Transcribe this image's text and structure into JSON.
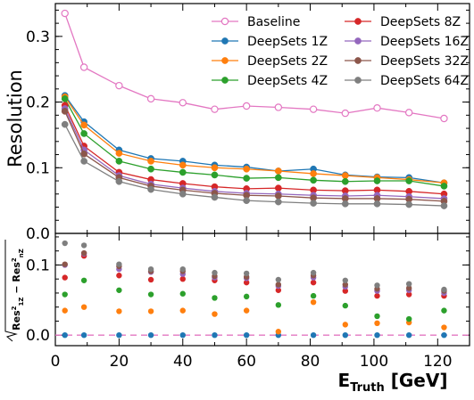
{
  "chart_data": [
    {
      "type": "line",
      "ylabel": "Resolution",
      "ylim": [
        0,
        0.35
      ],
      "xlim": [
        0,
        130
      ],
      "yticks": [
        0,
        0.1,
        0.2,
        0.3
      ],
      "ytick_labels": [
        "0.0",
        "0.1",
        "0.2",
        "0.3"
      ],
      "legend_position": "top-right",
      "x": [
        3,
        9,
        20,
        30,
        40,
        50,
        60,
        70,
        81,
        91,
        101,
        111,
        122
      ],
      "series": [
        {
          "name": "Baseline",
          "color": "#e377c2",
          "hollow": true,
          "values": [
            0.335,
            0.253,
            0.225,
            0.205,
            0.199,
            0.189,
            0.194,
            0.192,
            0.189,
            0.183,
            0.191,
            0.184,
            0.175
          ]
        },
        {
          "name": "DeepSets 1Z",
          "color": "#1f77b4",
          "values": [
            0.21,
            0.17,
            0.127,
            0.114,
            0.11,
            0.104,
            0.101,
            0.095,
            0.098,
            0.089,
            0.086,
            0.085,
            0.077
          ]
        },
        {
          "name": "DeepSets 2Z",
          "color": "#ff7f0e",
          "values": [
            0.208,
            0.165,
            0.122,
            0.11,
            0.104,
            0.1,
            0.098,
            0.095,
            0.091,
            0.088,
            0.085,
            0.082,
            0.077
          ]
        },
        {
          "name": "DeepSets 4Z",
          "color": "#2ca02c",
          "values": [
            0.205,
            0.152,
            0.11,
            0.098,
            0.093,
            0.089,
            0.084,
            0.085,
            0.081,
            0.079,
            0.08,
            0.08,
            0.072
          ]
        },
        {
          "name": "DeepSets 8Z",
          "color": "#d62728",
          "values": [
            0.195,
            0.133,
            0.093,
            0.082,
            0.076,
            0.071,
            0.068,
            0.069,
            0.066,
            0.065,
            0.066,
            0.064,
            0.06
          ]
        },
        {
          "name": "DeepSets 16Z",
          "color": "#9467bd",
          "values": [
            0.19,
            0.127,
            0.088,
            0.075,
            0.069,
            0.064,
            0.061,
            0.06,
            0.058,
            0.057,
            0.058,
            0.056,
            0.053
          ]
        },
        {
          "name": "DeepSets 32Z",
          "color": "#8c564b",
          "values": [
            0.186,
            0.121,
            0.085,
            0.072,
            0.066,
            0.061,
            0.058,
            0.057,
            0.054,
            0.053,
            0.053,
            0.052,
            0.049
          ]
        },
        {
          "name": "DeepSets 64Z",
          "color": "#7f7f7f",
          "values": [
            0.166,
            0.11,
            0.079,
            0.067,
            0.06,
            0.055,
            0.05,
            0.048,
            0.046,
            0.045,
            0.045,
            0.044,
            0.042
          ]
        }
      ]
    },
    {
      "type": "scatter",
      "ylabel": "√Res²₁Z − Res²ₙZ",
      "xlabel": "E",
      "xlabel_sub": "Truth",
      "xlabel_unit": "[GeV]",
      "ylim": [
        -0.015,
        0.145
      ],
      "xlim": [
        0,
        130
      ],
      "yticks": [
        0,
        0.1
      ],
      "ytick_labels": [
        "0.0",
        "0.1"
      ],
      "xticks": [
        0,
        20,
        40,
        60,
        80,
        100,
        120
      ],
      "xtick_labels": [
        "0",
        "20",
        "40",
        "60",
        "80",
        "100",
        "120"
      ],
      "zero_line_color": "#e377c2",
      "x": [
        3,
        9,
        20,
        30,
        40,
        50,
        60,
        70,
        81,
        91,
        101,
        111,
        122
      ],
      "series": [
        {
          "color": "#1f77b4",
          "values": [
            0,
            0,
            0,
            0,
            0,
            0,
            0,
            0,
            0,
            0,
            0,
            0,
            0
          ]
        },
        {
          "color": "#ff7f0e",
          "values": [
            0.035,
            0.04,
            0.034,
            0.034,
            0.035,
            0.03,
            0.035,
            0.005,
            0.047,
            0.015,
            0.017,
            0.018,
            0.011
          ]
        },
        {
          "color": "#2ca02c",
          "values": [
            0.058,
            0.078,
            0.064,
            0.058,
            0.059,
            0.053,
            0.055,
            0.043,
            0.056,
            0.042,
            0.027,
            0.023,
            0.035
          ]
        },
        {
          "color": "#d62728",
          "values": [
            0.082,
            0.113,
            0.085,
            0.079,
            0.08,
            0.078,
            0.075,
            0.064,
            0.075,
            0.063,
            0.056,
            0.058,
            0.056
          ]
        },
        {
          "color": "#9467bd",
          "values": [
            0.1,
            0.116,
            0.094,
            0.09,
            0.087,
            0.082,
            0.081,
            0.07,
            0.082,
            0.069,
            0.063,
            0.064,
            0.06
          ]
        },
        {
          "color": "#8c564b",
          "values": [
            0.101,
            0.117,
            0.098,
            0.091,
            0.091,
            0.084,
            0.083,
            0.072,
            0.085,
            0.072,
            0.066,
            0.067,
            0.063
          ]
        },
        {
          "color": "#7f7f7f",
          "values": [
            0.131,
            0.128,
            0.101,
            0.094,
            0.094,
            0.089,
            0.088,
            0.079,
            0.089,
            0.078,
            0.071,
            0.073,
            0.065
          ]
        }
      ]
    }
  ]
}
